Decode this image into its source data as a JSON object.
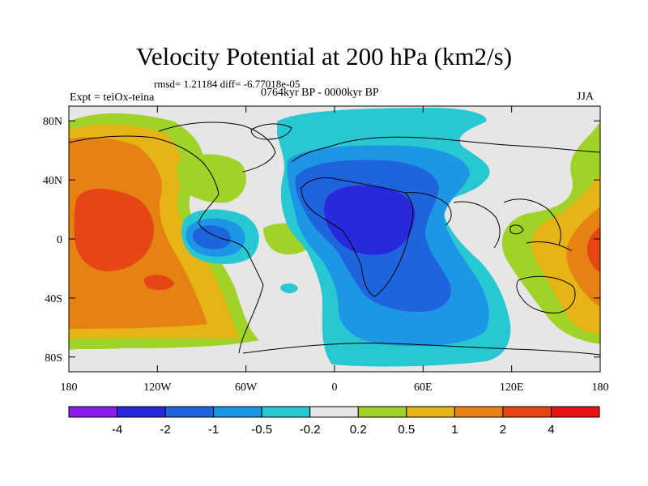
{
  "title": "Velocity Potential at 200 hPa (km2/s)",
  "stats": "rmsd= 1.21184 diff= -6.77018e-05",
  "subtitle": "0764kyr BP - 0000kyr BP",
  "experiment": "Expt = teiOx-teina",
  "season": "JJA",
  "map": {
    "lon_range": [
      -180,
      180
    ],
    "lat_range": [
      -90,
      90
    ],
    "x_ticks": [
      {
        "lon": -180,
        "label": "180"
      },
      {
        "lon": -120,
        "label": "120W"
      },
      {
        "lon": -60,
        "label": "60W"
      },
      {
        "lon": 0,
        "label": "0"
      },
      {
        "lon": 60,
        "label": "60E"
      },
      {
        "lon": 120,
        "label": "120E"
      },
      {
        "lon": 180,
        "label": "180"
      }
    ],
    "y_ticks": [
      {
        "lat": 80,
        "label": "80N"
      },
      {
        "lat": 40,
        "label": "40N"
      },
      {
        "lat": 0,
        "label": "0"
      },
      {
        "lat": -40,
        "label": "40S"
      },
      {
        "lat": -80,
        "label": "80S"
      }
    ],
    "background_color": "#e6e6e6"
  },
  "colorbar": {
    "colors": [
      "#8a1ee6",
      "#2828dc",
      "#1e64dc",
      "#1e96e6",
      "#28c8d2",
      "#e6e6e6",
      "#a0d228",
      "#e6b414",
      "#e68214",
      "#e64614",
      "#e61414"
    ],
    "labels": [
      "-4",
      "-2",
      "-1",
      "-0.5",
      "-0.2",
      "0.2",
      "0.5",
      "1",
      "2",
      "4"
    ]
  }
}
